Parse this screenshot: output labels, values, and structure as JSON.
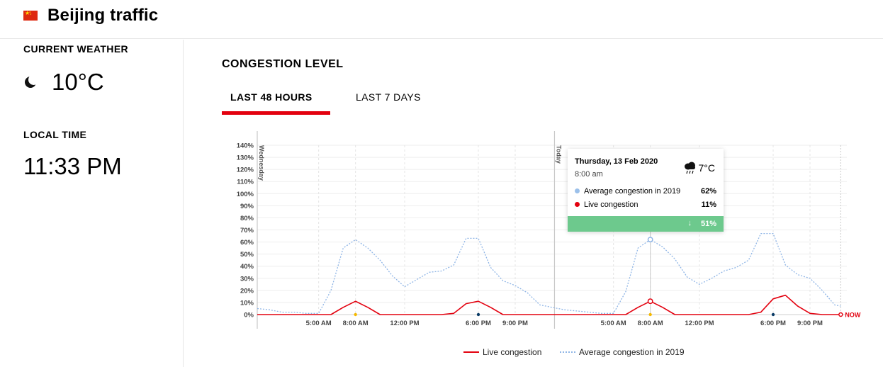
{
  "header": {
    "title": "Beijing traffic",
    "flag_icon": "china-flag-icon"
  },
  "sidebar": {
    "weather_label": "CURRENT WEATHER",
    "weather_icon": "moon-icon",
    "temperature": "10°C",
    "time_label": "LOCAL TIME",
    "local_time": "11:33 PM"
  },
  "main": {
    "section_title": "CONGESTION LEVEL",
    "tabs": [
      {
        "label": "LAST 48 HOURS",
        "active": true
      },
      {
        "label": "LAST 7 DAYS",
        "active": false
      }
    ]
  },
  "tooltip": {
    "date": "Thursday, 13 Feb 2020",
    "time": "8:00 am",
    "weather_icon": "rain-cloud-icon",
    "temperature": "7°C",
    "avg_label": "Average congestion in 2019",
    "avg_value": "62%",
    "live_label": "Live congestion",
    "live_value": "11%",
    "difference": "51%",
    "difference_icon": "arrow-down-icon",
    "difference_color": "#6dc98d"
  },
  "legend": {
    "live": "Live congestion",
    "avg": "Average congestion in 2019"
  },
  "colors": {
    "accent": "#e3010f",
    "live": "#e3010f",
    "avg": "#8fb5e6"
  },
  "chart_data": {
    "type": "line",
    "ylim": [
      0,
      140
    ],
    "y_ticks": [
      "0%",
      "10%",
      "20%",
      "30%",
      "40%",
      "50%",
      "60%",
      "70%",
      "80%",
      "90%",
      "100%",
      "110%",
      "120%",
      "130%",
      "140%"
    ],
    "xlim": [
      0,
      48
    ],
    "x_ticks": [
      {
        "x": 5,
        "label": "5:00 AM"
      },
      {
        "x": 8,
        "label": "8:00 AM"
      },
      {
        "x": 12,
        "label": "12:00 PM"
      },
      {
        "x": 18,
        "label": "6:00 PM"
      },
      {
        "x": 21,
        "label": "9:00 PM"
      },
      {
        "x": 29,
        "label": "5:00 AM"
      },
      {
        "x": 32,
        "label": "8:00 AM"
      },
      {
        "x": 36,
        "label": "12:00 PM"
      },
      {
        "x": 42,
        "label": "6:00 PM"
      },
      {
        "x": 45,
        "label": "9:00 PM"
      }
    ],
    "x_axis_markers": [
      {
        "x": 8,
        "color": "#f5b800"
      },
      {
        "x": 18,
        "color": "#0a3b66"
      },
      {
        "x": 32,
        "color": "#f5b800"
      },
      {
        "x": 42,
        "color": "#0a3b66"
      }
    ],
    "day_markers": [
      {
        "x": 0,
        "label": "Wednesday"
      },
      {
        "x": 24.2,
        "label": "Today"
      }
    ],
    "now_label": "NOW",
    "now_x": 47.5,
    "highlight_x": 32,
    "series": [
      {
        "name": "Live congestion",
        "style": "solid",
        "color": "#e3010f",
        "points": [
          [
            0,
            0
          ],
          [
            1,
            0
          ],
          [
            2,
            0
          ],
          [
            3,
            0
          ],
          [
            4,
            0
          ],
          [
            5,
            0
          ],
          [
            6,
            0
          ],
          [
            7,
            6
          ],
          [
            8,
            11
          ],
          [
            9,
            6
          ],
          [
            10,
            0
          ],
          [
            11,
            0
          ],
          [
            12,
            0
          ],
          [
            13,
            0
          ],
          [
            14,
            0
          ],
          [
            15,
            0
          ],
          [
            16,
            1
          ],
          [
            17,
            9
          ],
          [
            18,
            11
          ],
          [
            19,
            6
          ],
          [
            20,
            0
          ],
          [
            21,
            0
          ],
          [
            22,
            0
          ],
          [
            23,
            0
          ],
          [
            24,
            0
          ],
          [
            25,
            0
          ],
          [
            26,
            0
          ],
          [
            27,
            0
          ],
          [
            28,
            0
          ],
          [
            29,
            0
          ],
          [
            30,
            0
          ],
          [
            31,
            6
          ],
          [
            32,
            11
          ],
          [
            33,
            6
          ],
          [
            34,
            0
          ],
          [
            35,
            0
          ],
          [
            36,
            0
          ],
          [
            37,
            0
          ],
          [
            38,
            0
          ],
          [
            39,
            0
          ],
          [
            40,
            0
          ],
          [
            41,
            2
          ],
          [
            42,
            13
          ],
          [
            43,
            16
          ],
          [
            44,
            7
          ],
          [
            45,
            1
          ],
          [
            46,
            0
          ],
          [
            47,
            0
          ],
          [
            47.5,
            0
          ]
        ]
      },
      {
        "name": "Average congestion in 2019",
        "style": "dotted",
        "color": "#8fb5e6",
        "points": [
          [
            0,
            5
          ],
          [
            1,
            4
          ],
          [
            2,
            2
          ],
          [
            3,
            2
          ],
          [
            4,
            1
          ],
          [
            5,
            1
          ],
          [
            6,
            20
          ],
          [
            7,
            55
          ],
          [
            8,
            62
          ],
          [
            9,
            55
          ],
          [
            10,
            45
          ],
          [
            11,
            32
          ],
          [
            12,
            23
          ],
          [
            13,
            29
          ],
          [
            14,
            35
          ],
          [
            15,
            36
          ],
          [
            16,
            41
          ],
          [
            17,
            63
          ],
          [
            18,
            63
          ],
          [
            19,
            39
          ],
          [
            20,
            28
          ],
          [
            21,
            24
          ],
          [
            22,
            18
          ],
          [
            23,
            8
          ],
          [
            24,
            6
          ],
          [
            25,
            4
          ],
          [
            26,
            3
          ],
          [
            27,
            2
          ],
          [
            28,
            1
          ],
          [
            29,
            1
          ],
          [
            30,
            19
          ],
          [
            31,
            55
          ],
          [
            32,
            62
          ],
          [
            33,
            56
          ],
          [
            34,
            46
          ],
          [
            35,
            31
          ],
          [
            36,
            25
          ],
          [
            37,
            30
          ],
          [
            38,
            36
          ],
          [
            39,
            39
          ],
          [
            40,
            45
          ],
          [
            41,
            67
          ],
          [
            42,
            67
          ],
          [
            43,
            41
          ],
          [
            44,
            33
          ],
          [
            45,
            30
          ],
          [
            46,
            20
          ],
          [
            47,
            8
          ],
          [
            47.5,
            7
          ]
        ]
      }
    ]
  }
}
